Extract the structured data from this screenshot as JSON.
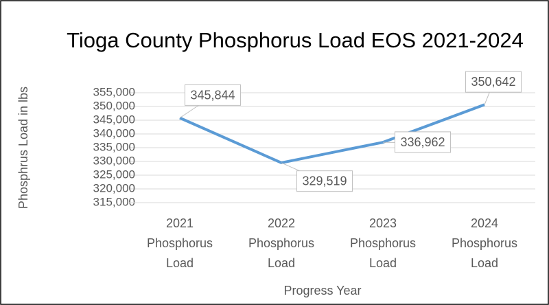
{
  "chart_data": {
    "type": "line",
    "title": "Tioga County Phosphorus Load EOS 2021-2024",
    "categories": [
      "2021 Phosphorus Load",
      "2022 Phosphorus Load",
      "2023 Phosphorus Load",
      "2024 Phosphorus Load"
    ],
    "series": [
      {
        "name": "Phosphorus Load",
        "color": "#5b9bd5",
        "values": [
          345844,
          329519,
          336962,
          350642
        ],
        "value_labels": [
          "345,844",
          "329,519",
          "336,962",
          "350,642"
        ]
      }
    ],
    "ylim": [
      315000,
      355000
    ],
    "yticks": [
      {
        "value": 315000,
        "label": "315,000"
      },
      {
        "value": 320000,
        "label": "320,000"
      },
      {
        "value": 325000,
        "label": "325,000"
      },
      {
        "value": 330000,
        "label": "330,000"
      },
      {
        "value": 335000,
        "label": "335,000"
      },
      {
        "value": 340000,
        "label": "340,000"
      },
      {
        "value": 345000,
        "label": "345,000"
      },
      {
        "value": 350000,
        "label": "350,000"
      },
      {
        "value": 355000,
        "label": "355,000"
      }
    ],
    "y_label": "Phosphrus Load in lbs",
    "x_label": "Progress Year",
    "grid": true
  }
}
